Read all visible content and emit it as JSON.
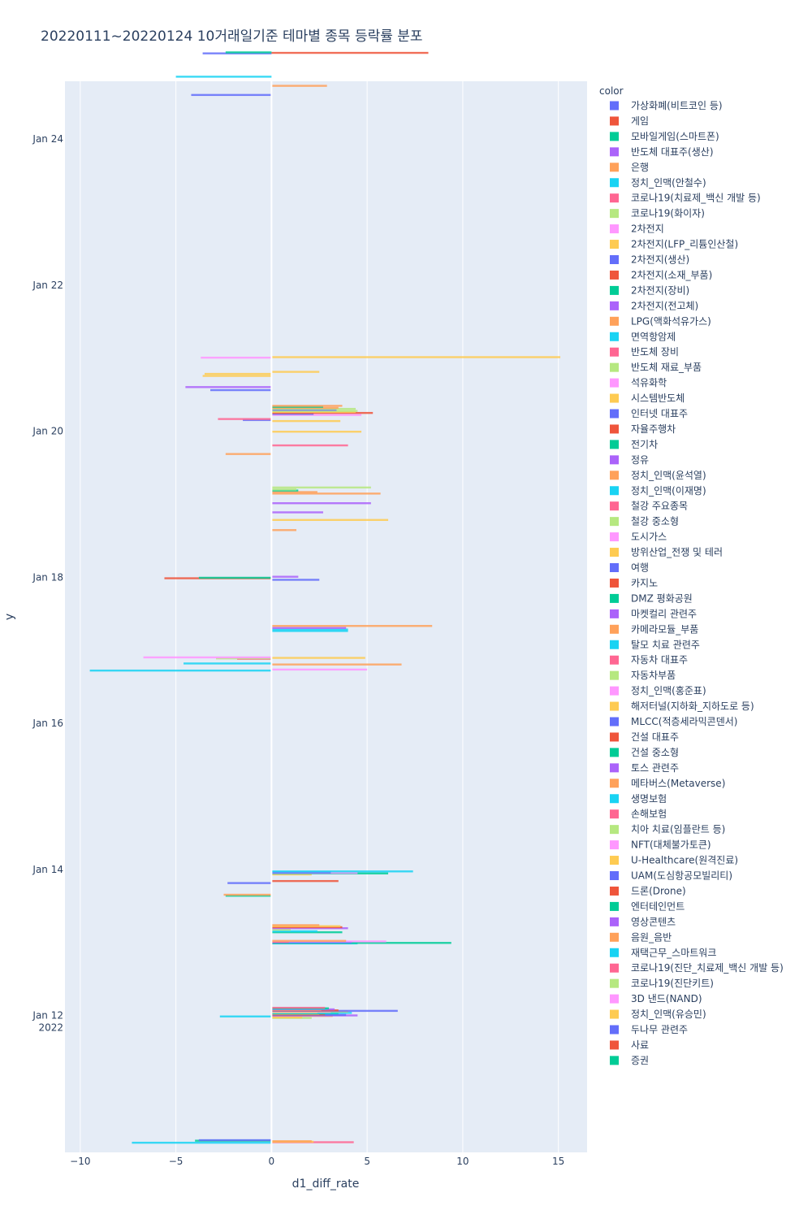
{
  "chart_data": {
    "type": "bar",
    "orientation": "horizontal",
    "title": "20220111~20220124 10거래일기준 테마별 종목 등락률 분포",
    "xlabel": "d1_diff_rate",
    "ylabel": "y",
    "xlim": [
      -10.8,
      16.5
    ],
    "ylim": [
      "2022-01-10T03:00",
      "2022-01-24T19:00"
    ],
    "x_ticks": [
      -10,
      -5,
      0,
      5,
      10,
      15
    ],
    "x_tick_labels": [
      "−10",
      "−5",
      "0",
      "5",
      "10",
      "15"
    ],
    "y_ticks": [
      {
        "date": "2022-01-12",
        "label": "Jan 12",
        "sublabel": "2022"
      },
      {
        "date": "2022-01-14",
        "label": "Jan 14",
        "sublabel": ""
      },
      {
        "date": "2022-01-16",
        "label": "Jan 16",
        "sublabel": ""
      },
      {
        "date": "2022-01-18",
        "label": "Jan 18",
        "sublabel": ""
      },
      {
        "date": "2022-01-20",
        "label": "Jan 20",
        "sublabel": ""
      },
      {
        "date": "2022-01-22",
        "label": "Jan 22",
        "sublabel": ""
      },
      {
        "date": "2022-01-24",
        "label": "Jan 24",
        "sublabel": ""
      }
    ],
    "grid": true,
    "legend_title": "color",
    "legend_position": "right",
    "series": [
      {
        "name": "가상화폐(비트코인 등)",
        "color": "#636EFA"
      },
      {
        "name": "게임",
        "color": "#EF553B"
      },
      {
        "name": "모바일게임(스마트폰)",
        "color": "#00CC96"
      },
      {
        "name": "반도체 대표주(생산)",
        "color": "#AB63FA"
      },
      {
        "name": "은행",
        "color": "#FFA15A"
      },
      {
        "name": "정치_인맥(안철수)",
        "color": "#19D3F3"
      },
      {
        "name": "코로나19(치료제_백신 개발 등)",
        "color": "#FF6692"
      },
      {
        "name": "코로나19(화이자)",
        "color": "#B6E880"
      },
      {
        "name": "2차전지",
        "color": "#FF97FF"
      },
      {
        "name": "2차전지(LFP_리튬인산철)",
        "color": "#FECB52"
      },
      {
        "name": "2차전지(생산)",
        "color": "#636EFA"
      },
      {
        "name": "2차전지(소재_부품)",
        "color": "#EF553B"
      },
      {
        "name": "2차전지(장비)",
        "color": "#00CC96"
      },
      {
        "name": "2차전지(전고체)",
        "color": "#AB63FA"
      },
      {
        "name": "LPG(액화석유가스)",
        "color": "#FFA15A"
      },
      {
        "name": "면역항암제",
        "color": "#19D3F3"
      },
      {
        "name": "반도체 장비",
        "color": "#FF6692"
      },
      {
        "name": "반도체 재료_부품",
        "color": "#B6E880"
      },
      {
        "name": "석유화학",
        "color": "#FF97FF"
      },
      {
        "name": "시스템반도체",
        "color": "#FECB52"
      },
      {
        "name": "인터넷 대표주",
        "color": "#636EFA"
      },
      {
        "name": "자율주행차",
        "color": "#EF553B"
      },
      {
        "name": "전기차",
        "color": "#00CC96"
      },
      {
        "name": "정유",
        "color": "#AB63FA"
      },
      {
        "name": "정치_인맥(윤석열)",
        "color": "#FFA15A"
      },
      {
        "name": "정치_인맥(이재명)",
        "color": "#19D3F3"
      },
      {
        "name": "철강 주요종목",
        "color": "#FF6692"
      },
      {
        "name": "철강 중소형",
        "color": "#B6E880"
      },
      {
        "name": "도시가스",
        "color": "#FF97FF"
      },
      {
        "name": "방위산업_전쟁 및 테러",
        "color": "#FECB52"
      },
      {
        "name": "여행",
        "color": "#636EFA"
      },
      {
        "name": "카지노",
        "color": "#EF553B"
      },
      {
        "name": "DMZ 평화공원",
        "color": "#00CC96"
      },
      {
        "name": "마켓컬리 관련주",
        "color": "#AB63FA"
      },
      {
        "name": "카메라모듈_부품",
        "color": "#FFA15A"
      },
      {
        "name": "탈모 치료 관련주",
        "color": "#19D3F3"
      },
      {
        "name": "자동차 대표주",
        "color": "#FF6692"
      },
      {
        "name": "자동차부품",
        "color": "#B6E880"
      },
      {
        "name": "정치_인맥(홍준표)",
        "color": "#FF97FF"
      },
      {
        "name": "해저터널(지하화_지하도로 등)",
        "color": "#FECB52"
      },
      {
        "name": "MLCC(적층세라믹콘덴서)",
        "color": "#636EFA"
      },
      {
        "name": "건설 대표주",
        "color": "#EF553B"
      },
      {
        "name": "건설 중소형",
        "color": "#00CC96"
      },
      {
        "name": "토스 관련주",
        "color": "#AB63FA"
      },
      {
        "name": "메타버스(Metaverse)",
        "color": "#FFA15A"
      },
      {
        "name": "생명보험",
        "color": "#19D3F3"
      },
      {
        "name": "손해보험",
        "color": "#FF6692"
      },
      {
        "name": "치아 치료(임플란트 등)",
        "color": "#B6E880"
      },
      {
        "name": "NFT(대체불가토큰)",
        "color": "#FF97FF"
      },
      {
        "name": "U-Healthcare(원격진료)",
        "color": "#FECB52"
      },
      {
        "name": "UAM(도심항공모빌리티)",
        "color": "#636EFA"
      },
      {
        "name": "드론(Drone)",
        "color": "#EF553B"
      },
      {
        "name": "엔터테인먼트",
        "color": "#00CC96"
      },
      {
        "name": "영상콘텐츠",
        "color": "#AB63FA"
      },
      {
        "name": "음원_음반",
        "color": "#FFA15A"
      },
      {
        "name": "재택근무_스마트워크",
        "color": "#19D3F3"
      },
      {
        "name": "코로나19(진단_치료제_백신 개발 등)",
        "color": "#FF6692"
      },
      {
        "name": "코로나19(진단키트)",
        "color": "#B6E880"
      },
      {
        "name": "3D 낸드(NAND)",
        "color": "#FF97FF"
      },
      {
        "name": "정치_인맥(유승민)",
        "color": "#FECB52"
      },
      {
        "name": "두나무 관련주",
        "color": "#636EFA"
      },
      {
        "name": "사료",
        "color": "#EF553B"
      },
      {
        "name": "증권",
        "color": "#00CC96"
      }
    ],
    "bars": [
      {
        "t": "2022-01-10T06:10",
        "v": -7.3,
        "c": 5
      },
      {
        "t": "2022-01-10T06:20",
        "v": 4.3,
        "c": 6
      },
      {
        "t": "2022-01-10T06:30",
        "v": 2.2,
        "c": 9
      },
      {
        "t": "2022-01-10T06:40",
        "v": 2.1,
        "c": 4
      },
      {
        "t": "2022-01-10T06:50",
        "v": -4.0,
        "c": 12
      },
      {
        "t": "2022-01-10T07:00",
        "v": -3.8,
        "c": 0
      },
      {
        "t": "2022-01-11T23:10",
        "v": 2.1,
        "c": 17
      },
      {
        "t": "2022-01-11T23:20",
        "v": 1.6,
        "c": 9
      },
      {
        "t": "2022-01-11T23:40",
        "v": -2.7,
        "c": 15
      },
      {
        "t": "2022-01-11T23:50",
        "v": 3.2,
        "c": 4
      },
      {
        "t": "2022-01-12T00:00",
        "v": 4.5,
        "c": 13
      },
      {
        "t": "2022-01-12T00:10",
        "v": 3.9,
        "c": 10
      },
      {
        "t": "2022-01-12T00:20",
        "v": 2.8,
        "c": 1
      },
      {
        "t": "2022-01-12T00:30",
        "v": 2.5,
        "c": 4
      },
      {
        "t": "2022-01-12T00:40",
        "v": 3.5,
        "c": 12
      },
      {
        "t": "2022-01-12T00:50",
        "v": 4.2,
        "c": 15
      },
      {
        "t": "2022-01-12T01:00",
        "v": 2.4,
        "c": 17
      },
      {
        "t": "2022-01-12T01:10",
        "v": 3.1,
        "c": 8
      },
      {
        "t": "2022-01-12T01:20",
        "v": 4.0,
        "c": 9
      },
      {
        "t": "2022-01-12T01:30",
        "v": 6.6,
        "c": 20
      },
      {
        "t": "2022-01-12T01:40",
        "v": 3.5,
        "c": 11
      },
      {
        "t": "2022-01-12T01:50",
        "v": 2.6,
        "c": 14
      },
      {
        "t": "2022-01-12T02:00",
        "v": 3.3,
        "c": 23
      },
      {
        "t": "2022-01-12T02:10",
        "v": 2.9,
        "c": 15
      },
      {
        "t": "2022-01-12T02:20",
        "v": 3.0,
        "c": 22
      },
      {
        "t": "2022-01-12T02:30",
        "v": 2.8,
        "c": 26
      },
      {
        "t": "2022-01-12T23:40",
        "v": 4.5,
        "c": 5
      },
      {
        "t": "2022-01-12T23:50",
        "v": 9.4,
        "c": 22
      },
      {
        "t": "2022-01-13T00:00",
        "v": 4.2,
        "c": 0
      },
      {
        "t": "2022-01-13T00:10",
        "v": 0.9,
        "c": 1
      },
      {
        "t": "2022-01-13T00:20",
        "v": 6.0,
        "c": 8
      },
      {
        "t": "2022-01-13T00:30",
        "v": 3.9,
        "c": 4
      },
      {
        "t": "2022-01-13T03:20",
        "v": 3.7,
        "c": 12
      },
      {
        "t": "2022-01-13T03:40",
        "v": 2.4,
        "c": 15
      },
      {
        "t": "2022-01-13T04:10",
        "v": 1.0,
        "c": 17
      },
      {
        "t": "2022-01-13T04:40",
        "v": 4.0,
        "c": 13
      },
      {
        "t": "2022-01-13T05:00",
        "v": 3.7,
        "c": 1
      },
      {
        "t": "2022-01-13T05:20",
        "v": 3.6,
        "c": 9
      },
      {
        "t": "2022-01-13T05:40",
        "v": 2.5,
        "c": 4
      },
      {
        "t": "2022-01-13T15:20",
        "v": -2.4,
        "c": 2
      },
      {
        "t": "2022-01-13T15:40",
        "v": -2.5,
        "c": 4
      },
      {
        "t": "2022-01-13T19:30",
        "v": -2.3,
        "c": 0
      },
      {
        "t": "2022-01-13T20:10",
        "v": 3.5,
        "c": 11
      },
      {
        "t": "2022-01-13T22:20",
        "v": 2.1,
        "c": 9
      },
      {
        "t": "2022-01-13T22:40",
        "v": 6.1,
        "c": 12
      },
      {
        "t": "2022-01-13T22:50",
        "v": 4.5,
        "c": 8
      },
      {
        "t": "2022-01-13T23:00",
        "v": 3.1,
        "c": 20
      },
      {
        "t": "2022-01-13T23:20",
        "v": 7.4,
        "c": 5
      },
      {
        "t": "2022-01-16T17:20",
        "v": -9.5,
        "c": 15
      },
      {
        "t": "2022-01-16T17:40",
        "v": 5.0,
        "c": 8
      },
      {
        "t": "2022-01-16T19:20",
        "v": 6.8,
        "c": 24
      },
      {
        "t": "2022-01-16T19:40",
        "v": -4.6,
        "c": 5
      },
      {
        "t": "2022-01-16T21:10",
        "v": -1.8,
        "c": 26
      },
      {
        "t": "2022-01-16T21:20",
        "v": -2.9,
        "c": 7
      },
      {
        "t": "2022-01-16T21:30",
        "v": 4.9,
        "c": 9
      },
      {
        "t": "2022-01-16T21:40",
        "v": -6.7,
        "c": 18
      },
      {
        "t": "2022-01-17T06:20",
        "v": 4.0,
        "c": 5
      },
      {
        "t": "2022-01-17T06:50",
        "v": 4.0,
        "c": 25
      },
      {
        "t": "2022-01-17T07:20",
        "v": 3.9,
        "c": 23
      },
      {
        "t": "2022-01-17T08:00",
        "v": 8.4,
        "c": 24
      },
      {
        "t": "2022-01-17T23:10",
        "v": 2.5,
        "c": 20
      },
      {
        "t": "2022-01-17T23:40",
        "v": -5.6,
        "c": 21
      },
      {
        "t": "2022-01-17T23:50",
        "v": -3.8,
        "c": 22
      },
      {
        "t": "2022-01-18T00:10",
        "v": 1.4,
        "c": 23
      },
      {
        "t": "2022-01-18T15:30",
        "v": 1.3,
        "c": 24
      },
      {
        "t": "2022-01-18T18:50",
        "v": 6.1,
        "c": 29
      },
      {
        "t": "2022-01-18T21:20",
        "v": 2.7,
        "c": 33
      },
      {
        "t": "2022-01-19T00:20",
        "v": 5.2,
        "c": 23
      },
      {
        "t": "2022-01-19T03:30",
        "v": 5.7,
        "c": 34
      },
      {
        "t": "2022-01-19T04:00",
        "v": 2.4,
        "c": 24
      },
      {
        "t": "2022-01-19T04:30",
        "v": 1.4,
        "c": 22
      },
      {
        "t": "2022-01-19T04:50",
        "v": 1.3,
        "c": 37
      },
      {
        "t": "2022-01-19T05:30",
        "v": 5.2,
        "c": 37
      },
      {
        "t": "2022-01-19T16:30",
        "v": -2.4,
        "c": 34
      },
      {
        "t": "2022-01-19T19:20",
        "v": 4.0,
        "c": 36
      },
      {
        "t": "2022-01-19T23:50",
        "v": 4.7,
        "c": 39
      },
      {
        "t": "2022-01-20T03:20",
        "v": 3.6,
        "c": 29
      },
      {
        "t": "2022-01-20T03:40",
        "v": -1.5,
        "c": 30
      },
      {
        "t": "2022-01-20T04:00",
        "v": -2.8,
        "c": 36
      },
      {
        "t": "2022-01-20T05:20",
        "v": 4.7,
        "c": 38
      },
      {
        "t": "2022-01-20T05:40",
        "v": 2.2,
        "c": 30
      },
      {
        "t": "2022-01-20T06:00",
        "v": 5.3,
        "c": 31
      },
      {
        "t": "2022-01-20T06:20",
        "v": 4.4,
        "c": 39
      },
      {
        "t": "2022-01-20T06:40",
        "v": 4.5,
        "c": 37
      },
      {
        "t": "2022-01-20T07:00",
        "v": 3.4,
        "c": 40
      },
      {
        "t": "2022-01-20T07:20",
        "v": 4.4,
        "c": 37
      },
      {
        "t": "2022-01-20T07:40",
        "v": 3.5,
        "c": 34
      },
      {
        "t": "2022-01-20T08:00",
        "v": 2.7,
        "c": 42
      },
      {
        "t": "2022-01-20T08:20",
        "v": 3.7,
        "c": 44
      },
      {
        "t": "2022-01-20T13:30",
        "v": -3.2,
        "c": 40
      },
      {
        "t": "2022-01-20T14:30",
        "v": -4.5,
        "c": 43
      },
      {
        "t": "2022-01-20T18:10",
        "v": -3.6,
        "c": 49
      },
      {
        "t": "2022-01-20T18:50",
        "v": -3.5,
        "c": 49
      },
      {
        "t": "2022-01-20T19:30",
        "v": 2.5,
        "c": 49
      },
      {
        "t": "2022-01-21T00:10",
        "v": -3.7,
        "c": 48
      },
      {
        "t": "2022-01-21T00:20",
        "v": 15.1,
        "c": 49
      },
      {
        "t": "2022-01-24T14:30",
        "v": -4.2,
        "c": 50
      },
      {
        "t": "2022-01-24T17:30",
        "v": 2.9,
        "c": 54
      },
      {
        "t": "2022-01-24T20:30",
        "v": -5.0,
        "c": 55
      },
      {
        "t": "2022-01-25T04:10",
        "v": -3.6,
        "c": 60
      },
      {
        "t": "2022-01-25T04:20",
        "v": 8.2,
        "c": 61
      },
      {
        "t": "2022-01-25T04:30",
        "v": -2.4,
        "c": 62
      }
    ]
  }
}
